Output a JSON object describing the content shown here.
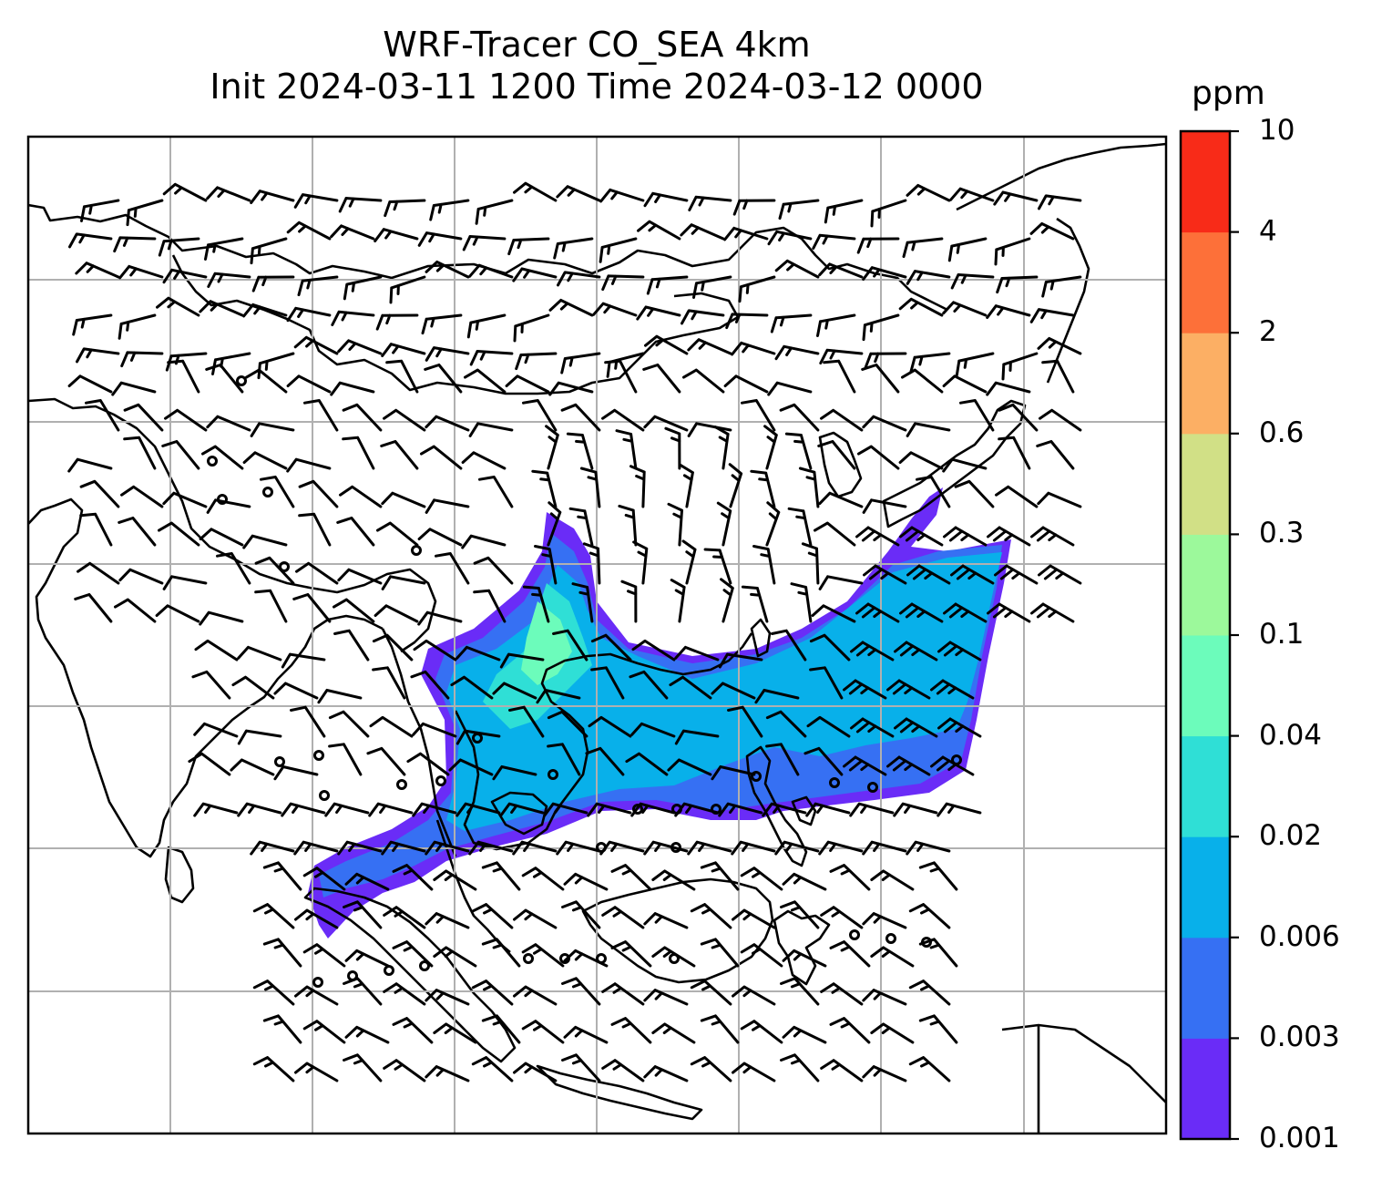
{
  "title": {
    "line1": "WRF-Tracer CO_SEA 4km",
    "line2": "Init 2024-03-11 1200 Time 2024-03-12 0000"
  },
  "map": {
    "field": "CO_SEA tracer concentration",
    "overlay": "wind barbs",
    "gridlines": true,
    "plume_region": "Southeast Asia mainland extending east across the South China Sea"
  },
  "colorbar": {
    "unit": "ppm",
    "levels": [
      "0.001",
      "0.003",
      "0.006",
      "0.02",
      "0.04",
      "0.1",
      "0.3",
      "0.6",
      "2",
      "4",
      "10"
    ],
    "colors": [
      "#6a2cf7",
      "#3670f3",
      "#08b0ea",
      "#2fdfd6",
      "#6cfcbb",
      "#9cf99b",
      "#d1e086",
      "#fcaf64",
      "#fd7039",
      "#f82b18"
    ]
  }
}
